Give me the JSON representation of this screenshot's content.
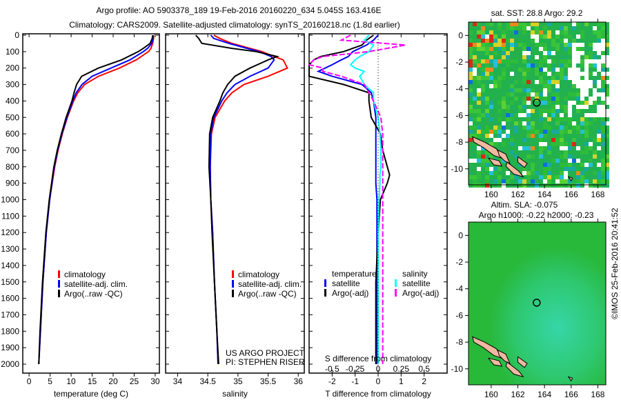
{
  "title_line1": "Argo profile: AO 5903378_189 19-Feb-2016 20160220_634 5.045S 163.416E",
  "title_line2": "Climatology: CARS2009. Satellite-adjusted climatology: synTS_20160218.nc (1.8d earlier)",
  "credit": "©IMOS 25-Feb-2016 20:41:52",
  "colors": {
    "climatology": "#ff0000",
    "satellite": "#0000ff",
    "argo": "#000000",
    "s_satellite": "#00ffff",
    "s_argo": "#ff00ff"
  },
  "chart_data": [
    {
      "type": "line",
      "id": "temperature",
      "xlabel": "temperature (deg C)",
      "ylabel": "",
      "xlim": [
        -1.5,
        31
      ],
      "ylim": [
        2050,
        0
      ],
      "xticks": [
        "0",
        "5",
        "10",
        "15",
        "20",
        "25",
        "30"
      ],
      "xtick_values": [
        0,
        5,
        10,
        15,
        20,
        25,
        30
      ],
      "yticks": [
        "0",
        "100",
        "200",
        "300",
        "400",
        "500",
        "600",
        "700",
        "800",
        "900",
        "1000",
        "1100",
        "1200",
        "1300",
        "1400",
        "1500",
        "1600",
        "1700",
        "1800",
        "1900",
        "2000"
      ],
      "legend": [
        "climatology",
        "satellite-adj. clim.",
        "Argo(..raw -QC)"
      ],
      "depth": [
        0,
        20,
        50,
        80,
        100,
        150,
        200,
        250,
        300,
        350,
        400,
        500,
        600,
        700,
        800,
        1000,
        1200,
        1500,
        1800,
        2000
      ],
      "series": [
        {
          "name": "climatology",
          "values": [
            29.6,
            29.6,
            29.4,
            29,
            28.4,
            25.5,
            21.5,
            16.5,
            13.2,
            11.6,
            10.6,
            9.1,
            7.9,
            6.9,
            6.1,
            4.9,
            4.1,
            3.3,
            2.7,
            2.3
          ]
        },
        {
          "name": "satellite-adj. clim.",
          "values": [
            29.5,
            29.5,
            29.2,
            28.2,
            27.2,
            24,
            19.5,
            15,
            12.6,
            11.2,
            10.4,
            9,
            7.8,
            6.8,
            6,
            4.9,
            4.1,
            3.3,
            2.7,
            2.3
          ]
        },
        {
          "name": "Argo(..raw -QC)",
          "values": [
            29.4,
            29.3,
            28.8,
            27.2,
            26,
            22,
            16.5,
            12.5,
            11.3,
            10.7,
            10.2,
            8.8,
            7.7,
            6.7,
            5.9,
            4.8,
            4,
            3.2,
            2.6,
            2.3
          ]
        }
      ]
    },
    {
      "type": "line",
      "id": "salinity",
      "xlabel": "salinity",
      "xlim": [
        33.8,
        36.1
      ],
      "ylim": [
        2050,
        0
      ],
      "xticks": [
        "34",
        "34.5",
        "35",
        "35.5",
        "36"
      ],
      "xtick_values": [
        34,
        34.5,
        35,
        35.5,
        36
      ],
      "legend": [
        "climatology",
        "satellite-adj. clim.",
        "Argo(..raw -QC)"
      ],
      "annotation": [
        "US ARGO PROJECT",
        "PI: STEPHEN RISER"
      ],
      "depth": [
        0,
        20,
        50,
        80,
        100,
        130,
        150,
        200,
        250,
        300,
        350,
        400,
        500,
        600,
        800,
        1000,
        1200,
        1500,
        1800,
        2000
      ],
      "series": [
        {
          "name": "climatology",
          "values": [
            34.6,
            34.7,
            34.9,
            35.2,
            35.4,
            35.6,
            35.75,
            35.82,
            35.5,
            35.1,
            34.9,
            34.78,
            34.62,
            34.56,
            34.54,
            34.55,
            34.58,
            34.61,
            34.65,
            34.67
          ]
        },
        {
          "name": "satellite-adj. clim.",
          "values": [
            34.55,
            34.6,
            34.85,
            35.15,
            35.35,
            35.55,
            35.6,
            35.5,
            35.2,
            34.95,
            34.82,
            34.73,
            34.6,
            34.55,
            34.54,
            34.55,
            34.58,
            34.61,
            34.65,
            34.67
          ]
        },
        {
          "name": "Argo(..raw -QC)",
          "values": [
            34.3,
            34.35,
            34.4,
            34.9,
            35.3,
            35.65,
            35.5,
            35.2,
            34.95,
            34.83,
            34.75,
            34.7,
            34.58,
            34.53,
            34.52,
            34.55,
            34.57,
            34.61,
            34.65,
            34.68
          ]
        }
      ]
    },
    {
      "type": "line",
      "id": "difference",
      "xlabel": "T difference from climatology",
      "x2label": "S difference from climatology",
      "xlim": [
        -3,
        3
      ],
      "ylim": [
        2050,
        0
      ],
      "xticks": [
        "-2",
        "-1",
        "0",
        "1",
        "2"
      ],
      "xtick_values": [
        -2,
        -1,
        0,
        1,
        2
      ],
      "x2ticks": [
        "-0.5",
        "-0.25",
        "0",
        "0.25",
        "0.5"
      ],
      "x2tick_values": [
        -0.5,
        -0.25,
        0,
        0.25,
        0.5
      ],
      "legend_headers": [
        "temperature",
        "salinity"
      ],
      "legend": [
        "satellite",
        "Argo(-adj)",
        "satellite",
        "Argo(-adj)"
      ],
      "depth": [
        0,
        30,
        60,
        100,
        130,
        150,
        180,
        200,
        220,
        250,
        300,
        350,
        400,
        500,
        600,
        700,
        800,
        850,
        900,
        1000,
        1200,
        1500,
        1800,
        2000
      ],
      "series": [
        {
          "name": "T satellite",
          "values": [
            0,
            -0.2,
            -0.5,
            -1.1,
            -1.3,
            -1.6,
            -2.0,
            -2.3,
            -2.6,
            -2.0,
            -0.7,
            -0.3,
            -0.2,
            -0.1,
            -0.1,
            -0.1,
            -0.1,
            -0.1,
            -0.1,
            -0.05,
            -0.05,
            -0.05,
            -0.05,
            -0.05
          ]
        },
        {
          "name": "T Argo(-adj)",
          "values": [
            -0.2,
            -0.5,
            -0.7,
            -1.5,
            -2.5,
            -2.8,
            -3,
            -3,
            -3,
            -3,
            -1.5,
            -0.4,
            -0.4,
            -0.3,
            0.1,
            0.2,
            0.4,
            0.5,
            0.4,
            0.1,
            0,
            -0.1,
            -0.1,
            -0.1
          ]
        },
        {
          "name": "S satellite",
          "values": [
            -0.1,
            -0.15,
            -0.05,
            -0.1,
            -0.2,
            -0.25,
            -0.3,
            -0.25,
            -0.15,
            -0.2,
            -0.15,
            -0.05,
            -0.05,
            0,
            0.02,
            0.03,
            0.03,
            0.02,
            0.02,
            0.01,
            0,
            0,
            0,
            0
          ]
        },
        {
          "name": "S Argo(-adj)",
          "values": [
            -0.3,
            -0.4,
            0.3,
            -0.1,
            -0.6,
            -0.7,
            -0.75,
            -0.6,
            -0.6,
            -0.4,
            -0.15,
            -0.1,
            -0.05,
            0.03,
            0.05,
            0.05,
            0.05,
            0.05,
            0.05,
            0.05,
            0.05,
            0.05,
            0.05,
            0.05
          ]
        }
      ]
    },
    {
      "type": "heatmap",
      "id": "sst-map",
      "title": "sat. SST: 28.8 Argo: 29.2",
      "xlim": [
        158.3,
        168.6
      ],
      "ylim": [
        -11.2,
        1
      ],
      "xticks": [
        "160",
        "162",
        "164",
        "166",
        "168"
      ],
      "xtick_values": [
        160,
        162,
        164,
        166,
        168
      ],
      "yticks": [
        "0",
        "-2",
        "-4",
        "-6",
        "-8",
        "-10"
      ],
      "ytick_values": [
        0,
        -2,
        -4,
        -6,
        -8,
        -10
      ],
      "argo_position": [
        163.416,
        -5.045
      ]
    },
    {
      "type": "heatmap",
      "id": "sla-map",
      "title": "Altim. SLA: -0.075",
      "subtitle": "Argo h1000: -0.22 h2000: -0.23",
      "xlim": [
        158.3,
        168.6
      ],
      "ylim": [
        -11.2,
        1
      ],
      "xticks": [
        "160",
        "162",
        "164",
        "166",
        "168"
      ],
      "xtick_values": [
        160,
        162,
        164,
        166,
        168
      ],
      "yticks": [
        "0",
        "-2",
        "-4",
        "-6",
        "-8",
        "-10"
      ],
      "ytick_values": [
        0,
        -2,
        -4,
        -6,
        -8,
        -10
      ],
      "argo_position": [
        163.416,
        -5.045
      ]
    }
  ]
}
